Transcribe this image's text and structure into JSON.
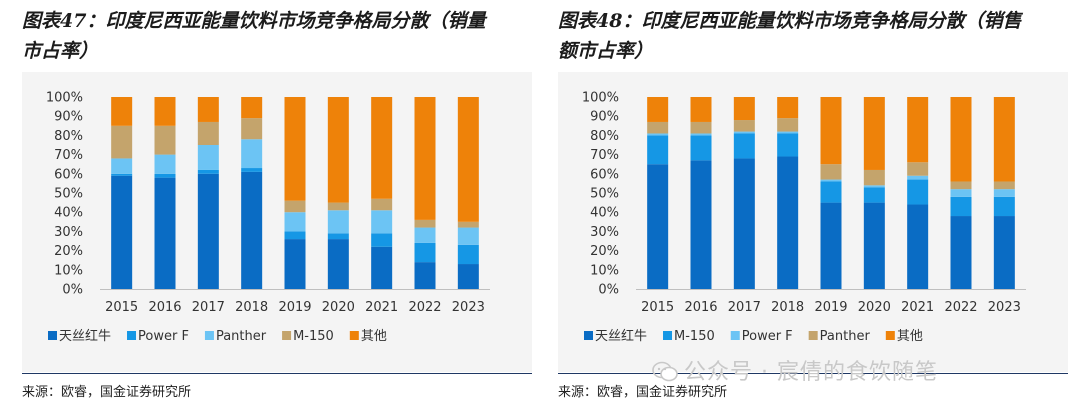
{
  "charts": [
    {
      "title": "图表47：印度尼西亚能量饮料市场竞争格局分散（销量市占率）",
      "title_line1": "图表47：印度尼西亚能量饮料市场竞争格局分散（销量",
      "title_line2": "市占率）",
      "source": "来源：欧睿，国金证券研究所"
    },
    {
      "title": "图表48：印度尼西亚能量饮料市场竞争格局分散（销售额市占率）",
      "title_line1": "图表48：印度尼西亚能量饮料市场竞争格局分散（销售",
      "title_line2": "额市占率）",
      "source": "来源：欧睿，国金证券研究所"
    }
  ],
  "watermark": "公众号 · 宸倩的食饮随笔",
  "chart_data": [
    {
      "type": "bar",
      "stacked": true,
      "percent": true,
      "categories": [
        "2015",
        "2016",
        "2017",
        "2018",
        "2019",
        "2020",
        "2021",
        "2022",
        "2023"
      ],
      "ylim": [
        0,
        100
      ],
      "ytick_labels": [
        "0%",
        "10%",
        "20%",
        "30%",
        "40%",
        "50%",
        "60%",
        "70%",
        "80%",
        "90%",
        "100%"
      ],
      "legend_position": "bottom",
      "series": [
        {
          "name": "天丝红牛",
          "color": "#0a6cc4",
          "values": [
            59,
            58,
            60,
            61,
            26,
            26,
            22,
            14,
            13
          ]
        },
        {
          "name": "Power F",
          "color": "#1597e5",
          "values": [
            1,
            2,
            2,
            2,
            4,
            3,
            7,
            10,
            10
          ]
        },
        {
          "name": "Panther",
          "color": "#6cc4f4",
          "values": [
            8,
            10,
            13,
            15,
            10,
            12,
            12,
            8,
            9
          ]
        },
        {
          "name": "M-150",
          "color": "#c4a46c",
          "values": [
            17,
            15,
            12,
            11,
            6,
            4,
            6,
            4,
            3
          ]
        },
        {
          "name": "其他",
          "color": "#ee8209",
          "values": [
            15,
            15,
            13,
            11,
            54,
            55,
            53,
            64,
            65
          ]
        }
      ]
    },
    {
      "type": "bar",
      "stacked": true,
      "percent": true,
      "categories": [
        "2015",
        "2016",
        "2017",
        "2018",
        "2019",
        "2020",
        "2021",
        "2022",
        "2023"
      ],
      "ylim": [
        0,
        100
      ],
      "ytick_labels": [
        "0%",
        "10%",
        "20%",
        "30%",
        "40%",
        "50%",
        "60%",
        "70%",
        "80%",
        "90%",
        "100%"
      ],
      "legend_position": "bottom",
      "series": [
        {
          "name": "天丝红牛",
          "color": "#0a6cc4",
          "values": [
            65,
            67,
            68,
            69,
            45,
            45,
            44,
            38,
            38
          ]
        },
        {
          "name": "M-150",
          "color": "#1597e5",
          "values": [
            15,
            13,
            13,
            12,
            11,
            8,
            13,
            10,
            10
          ]
        },
        {
          "name": "Power F",
          "color": "#6cc4f4",
          "values": [
            1,
            1,
            1,
            1,
            1,
            1,
            2,
            4,
            4
          ]
        },
        {
          "name": "Panther",
          "color": "#c4a46c",
          "values": [
            6,
            6,
            6,
            7,
            8,
            8,
            7,
            4,
            4
          ]
        },
        {
          "name": "其他",
          "color": "#ee8209",
          "values": [
            13,
            13,
            12,
            11,
            35,
            38,
            34,
            44,
            44
          ]
        }
      ]
    }
  ]
}
